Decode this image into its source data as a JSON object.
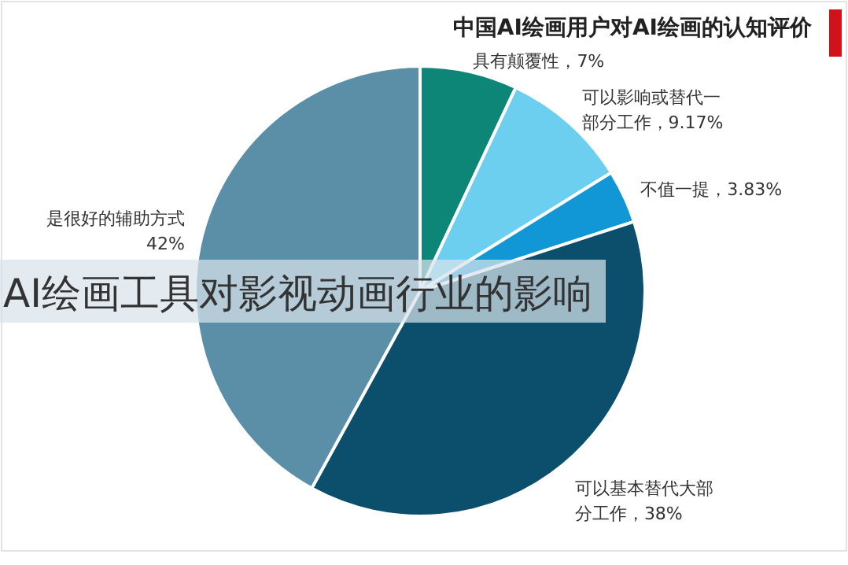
{
  "chart_data": {
    "type": "pie",
    "title": "中国AI绘画用户对AI绘画的认知评价",
    "categories": [
      "具有颠覆性",
      "可以影响或替代一部分工作",
      "不值一提",
      "可以基本替代大部分工作",
      "是很好的辅助方式"
    ],
    "values": [
      7,
      9.17,
      3.83,
      38,
      42
    ],
    "value_labels": [
      "7%",
      "9.17%",
      "3.83%",
      "38%",
      "42%"
    ],
    "colors": [
      "#0d8577",
      "#6ccff0",
      "#1197d6",
      "#0b4f6c",
      "#5b8fa8"
    ],
    "annotations": [
      "AI绘画工具对影视动画行业的影响"
    ]
  }
}
